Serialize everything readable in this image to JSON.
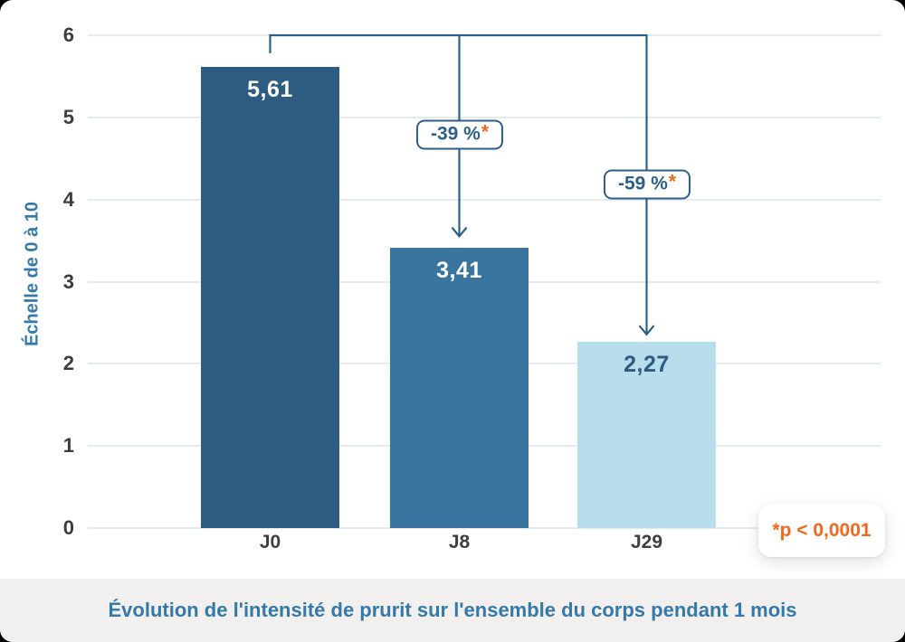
{
  "colors": {
    "annotation_blue": "#2e5f88",
    "orange": "#f2671c",
    "axis_text": "#3d3d3d",
    "gridline": "#e2eaf2",
    "title_blue": "#3579a8",
    "caption_bg": "#f1f0ee",
    "bar_colors": [
      "#2d5c80",
      "#39759f",
      "#b8deee"
    ],
    "value_label_colors": [
      "#ffffff",
      "#ffffff",
      "#2d5c80"
    ]
  },
  "chart_data": {
    "type": "bar",
    "categories": [
      "J0",
      "J8",
      "J29"
    ],
    "values": [
      5.61,
      3.41,
      2.27
    ],
    "value_labels": [
      "5,61",
      "3,41",
      "2,27"
    ],
    "ylabel": "Échelle de 0 à 10",
    "ylim": [
      0,
      6
    ],
    "yticks": [
      0,
      1,
      2,
      3,
      4,
      5,
      6
    ],
    "grid": true,
    "annotations": [
      {
        "label": "-39 %",
        "star": "*",
        "from": "J0",
        "to": "J8"
      },
      {
        "label": "-59 %",
        "star": "*",
        "from": "J0",
        "to": "J29"
      }
    ],
    "footnote": "*p < 0,0001",
    "caption": "Évolution de l'intensité de prurit sur l'ensemble du corps pendant 1 mois"
  }
}
